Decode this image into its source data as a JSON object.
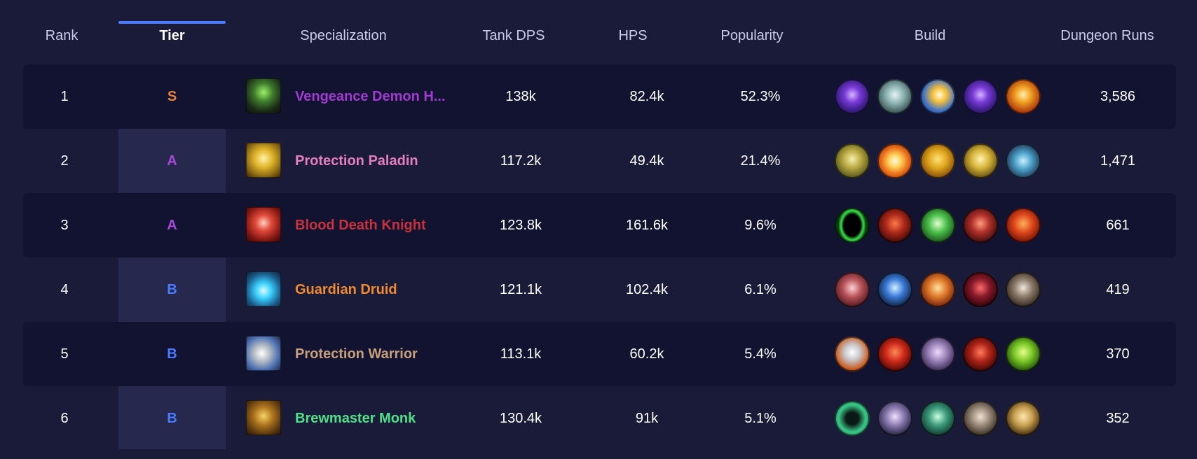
{
  "headers": {
    "rank": "Rank",
    "tier": "Tier",
    "specialization": "Specialization",
    "tank_dps": "Tank DPS",
    "hps": "HPS",
    "popularity": "Popularity",
    "build": "Build",
    "dungeon_runs": "Dungeon Runs"
  },
  "rows": [
    {
      "rank": "1",
      "tier": "S",
      "tier_color": "#e8833a",
      "spec": "Vengeance Demon H...",
      "spec_color": "#a33ad1",
      "spec_icon": "vengeance-demon-hunter-icon",
      "tank_dps": "138k",
      "hps": "82.4k",
      "popularity": "52.3%",
      "runs": "3,586",
      "build": [
        {
          "icon": "purple-orb-talent-icon"
        },
        {
          "icon": "skull-talent-icon"
        },
        {
          "icon": "light-burst-talent-icon"
        },
        {
          "icon": "purple-orb-talent-icon"
        },
        {
          "icon": "fire-wing-talent-icon"
        }
      ]
    },
    {
      "rank": "2",
      "tier": "A",
      "tier_color": "#a64ad8",
      "spec": "Protection Paladin",
      "spec_color": "#e57ebf",
      "spec_icon": "protection-paladin-icon",
      "tank_dps": "117.2k",
      "hps": "49.4k",
      "popularity": "21.4%",
      "runs": "1,471",
      "build": [
        {
          "icon": "lion-head-talent-icon"
        },
        {
          "icon": "holy-flame-talent-icon"
        },
        {
          "icon": "golden-knight-talent-icon"
        },
        {
          "icon": "golden-helm-talent-icon"
        },
        {
          "icon": "rune-circle-talent-icon"
        }
      ]
    },
    {
      "rank": "3",
      "tier": "A",
      "tier_color": "#a64ad8",
      "spec": "Blood Death Knight",
      "spec_color": "#c7323d",
      "spec_icon": "blood-death-knight-icon",
      "tank_dps": "123.8k",
      "hps": "161.6k",
      "popularity": "9.6%",
      "runs": "661",
      "build": [
        {
          "icon": "green-portal-talent-icon"
        },
        {
          "icon": "red-demon-talent-icon"
        },
        {
          "icon": "green-skull-talent-icon"
        },
        {
          "icon": "blood-claw-talent-icon"
        },
        {
          "icon": "blood-burst-talent-icon"
        }
      ]
    },
    {
      "rank": "4",
      "tier": "B",
      "tier_color": "#4a7cff",
      "spec": "Guardian Druid",
      "spec_color": "#f08a2e",
      "spec_icon": "guardian-druid-icon",
      "tank_dps": "121.1k",
      "hps": "102.4k",
      "popularity": "6.1%",
      "runs": "419",
      "build": [
        {
          "icon": "bear-maul-talent-icon"
        },
        {
          "icon": "blue-swirl-talent-icon"
        },
        {
          "icon": "fire-bear-talent-icon"
        },
        {
          "icon": "dark-wolf-talent-icon"
        },
        {
          "icon": "claw-talent-icon"
        }
      ]
    },
    {
      "rank": "5",
      "tier": "B",
      "tier_color": "#4a7cff",
      "spec": "Protection Warrior",
      "spec_color": "#c6a07a",
      "spec_icon": "protection-warrior-icon",
      "tank_dps": "113.1k",
      "hps": "60.2k",
      "popularity": "5.4%",
      "runs": "370",
      "build": [
        {
          "icon": "silver-shield-talent-icon"
        },
        {
          "icon": "red-slash-talent-icon"
        },
        {
          "icon": "warrior-face-talent-icon"
        },
        {
          "icon": "red-brute-talent-icon"
        },
        {
          "icon": "green-orc-talent-icon"
        }
      ]
    },
    {
      "rank": "6",
      "tier": "B",
      "tier_color": "#4a7cff",
      "spec": "Brewmaster Monk",
      "spec_color": "#4fe08a",
      "spec_icon": "brewmaster-monk-icon",
      "tank_dps": "130.4k",
      "hps": "91k",
      "popularity": "5.1%",
      "runs": "352",
      "build": [
        {
          "icon": "jade-vortex-talent-icon"
        },
        {
          "icon": "mist-hand-talent-icon"
        },
        {
          "icon": "jade-serpent-talent-icon"
        },
        {
          "icon": "stone-mask-talent-icon"
        },
        {
          "icon": "monk-face-talent-icon"
        }
      ]
    }
  ]
}
